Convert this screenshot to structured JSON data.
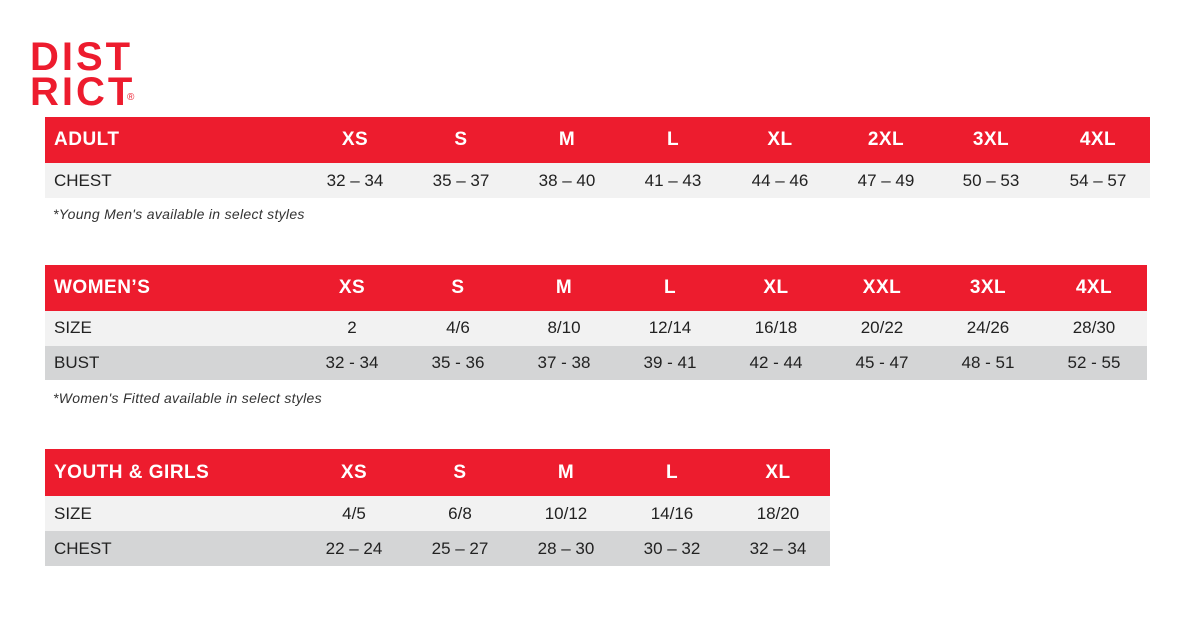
{
  "logo": {
    "line1": "DIST",
    "line2": "RICT",
    "mark": "®"
  },
  "tables": [
    {
      "title": "ADULT",
      "columns": [
        "XS",
        "S",
        "M",
        "L",
        "XL",
        "2XL",
        "3XL",
        "4XL"
      ],
      "rows": [
        {
          "label": "CHEST",
          "values": [
            "32 – 34",
            "35 – 37",
            "38 – 40",
            "41 – 43",
            "44 – 46",
            "47 – 49",
            "50 – 53",
            "54 – 57"
          ]
        }
      ],
      "note": "*Young Men's available in select styles"
    },
    {
      "title": "WOMEN’S",
      "columns": [
        "XS",
        "S",
        "M",
        "L",
        "XL",
        "XXL",
        "3XL",
        "4XL"
      ],
      "rows": [
        {
          "label": "SIZE",
          "values": [
            "2",
            "4/6",
            "8/10",
            "12/14",
            "16/18",
            "20/22",
            "24/26",
            "28/30"
          ]
        },
        {
          "label": "BUST",
          "values": [
            "32 - 34",
            "35 - 36",
            "37 - 38",
            "39 - 41",
            "42 - 44",
            "45 - 47",
            "48 - 51",
            "52 - 55"
          ]
        }
      ],
      "note": "*Women's Fitted available in select styles"
    },
    {
      "title": "YOUTH & GIRLS",
      "columns": [
        "XS",
        "S",
        "M",
        "L",
        "XL"
      ],
      "rows": [
        {
          "label": "SIZE",
          "values": [
            "4/5",
            "6/8",
            "10/12",
            "14/16",
            "18/20"
          ]
        },
        {
          "label": "CHEST",
          "values": [
            "22 – 24",
            "25 – 27",
            "28 – 30",
            "30 – 32",
            "32 – 34"
          ]
        }
      ]
    }
  ]
}
